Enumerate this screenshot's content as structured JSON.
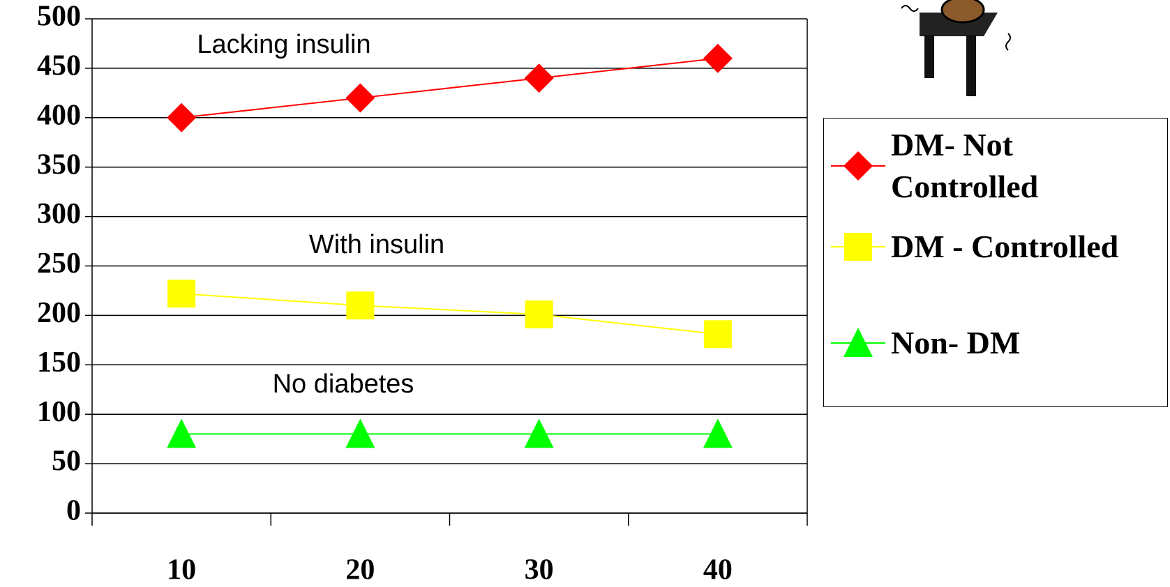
{
  "chart_data": {
    "type": "line",
    "categories": [
      "10",
      "20",
      "30",
      "40"
    ],
    "series": [
      {
        "name": "DM- Not Controlled",
        "color": "#ff0000",
        "marker": "diamond",
        "values": [
          400,
          420,
          440,
          460
        ]
      },
      {
        "name": "DM - Controlled",
        "color": "#ffff00",
        "marker": "square",
        "values": [
          222,
          210,
          201,
          181
        ]
      },
      {
        "name": "Non- DM",
        "color": "#00ff00",
        "marker": "triangle",
        "values": [
          80,
          80,
          80,
          80
        ]
      }
    ],
    "annotations": [
      "Lacking insulin",
      "With insulin",
      "No diabetes"
    ],
    "ylim": [
      0,
      500
    ],
    "yticks": [
      0,
      50,
      100,
      150,
      200,
      250,
      300,
      350,
      400,
      450,
      500
    ],
    "grid": true
  }
}
